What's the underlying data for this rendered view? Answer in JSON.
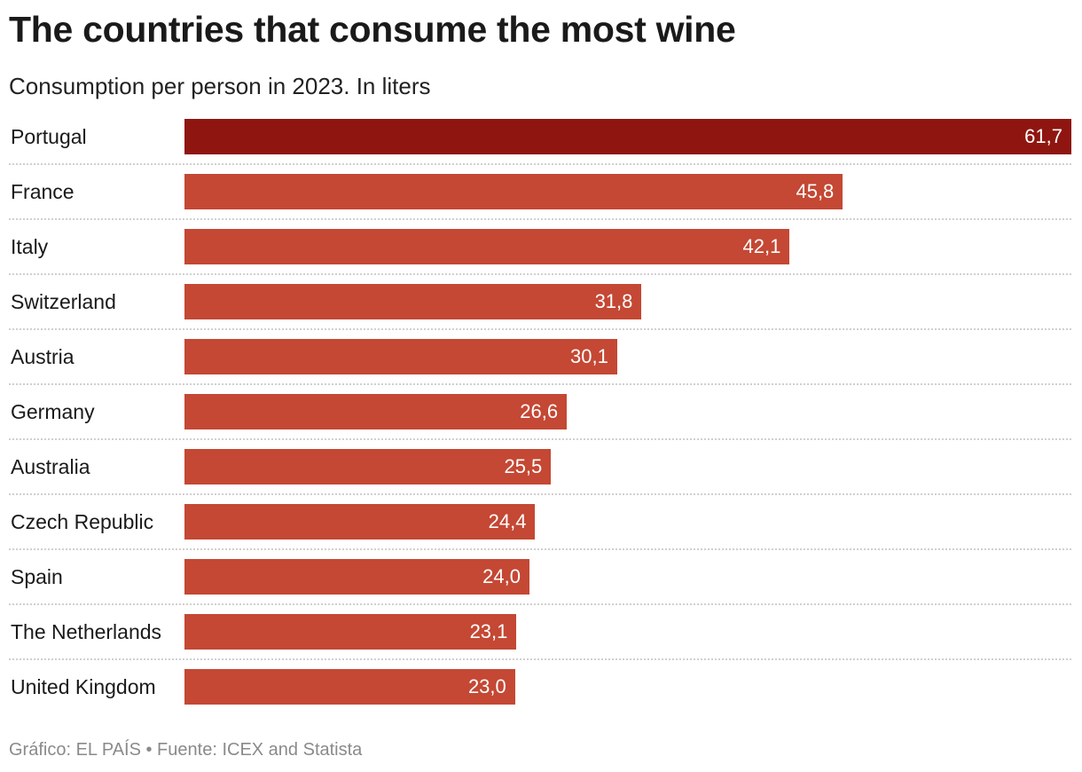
{
  "chart_data": {
    "type": "bar",
    "orientation": "horizontal",
    "title": "The countries that consume the most wine",
    "subtitle": "Consumption per person in 2023. In liters",
    "categories": [
      "Portugal",
      "France",
      "Italy",
      "Switzerland",
      "Austria",
      "Germany",
      "Australia",
      "Czech Republic",
      "Spain",
      "The Netherlands",
      "United Kingdom"
    ],
    "values": [
      61.7,
      45.8,
      42.1,
      31.8,
      30.1,
      26.6,
      25.5,
      24.4,
      24.0,
      23.1,
      23.0
    ],
    "data_labels": [
      "61,7",
      "45,8",
      "42,1",
      "31,8",
      "30,1",
      "26,6",
      "25,5",
      "24,4",
      "24,0",
      "23,1",
      "23,0"
    ],
    "highlight_index": 0,
    "colors": {
      "highlight": "#8f1610",
      "default": "#c44834"
    },
    "grid": false,
    "legend": "none",
    "xlim": [
      0,
      61.7
    ],
    "footer": "Gráfico: EL PAÍS • Fuente: ICEX and Statista"
  }
}
